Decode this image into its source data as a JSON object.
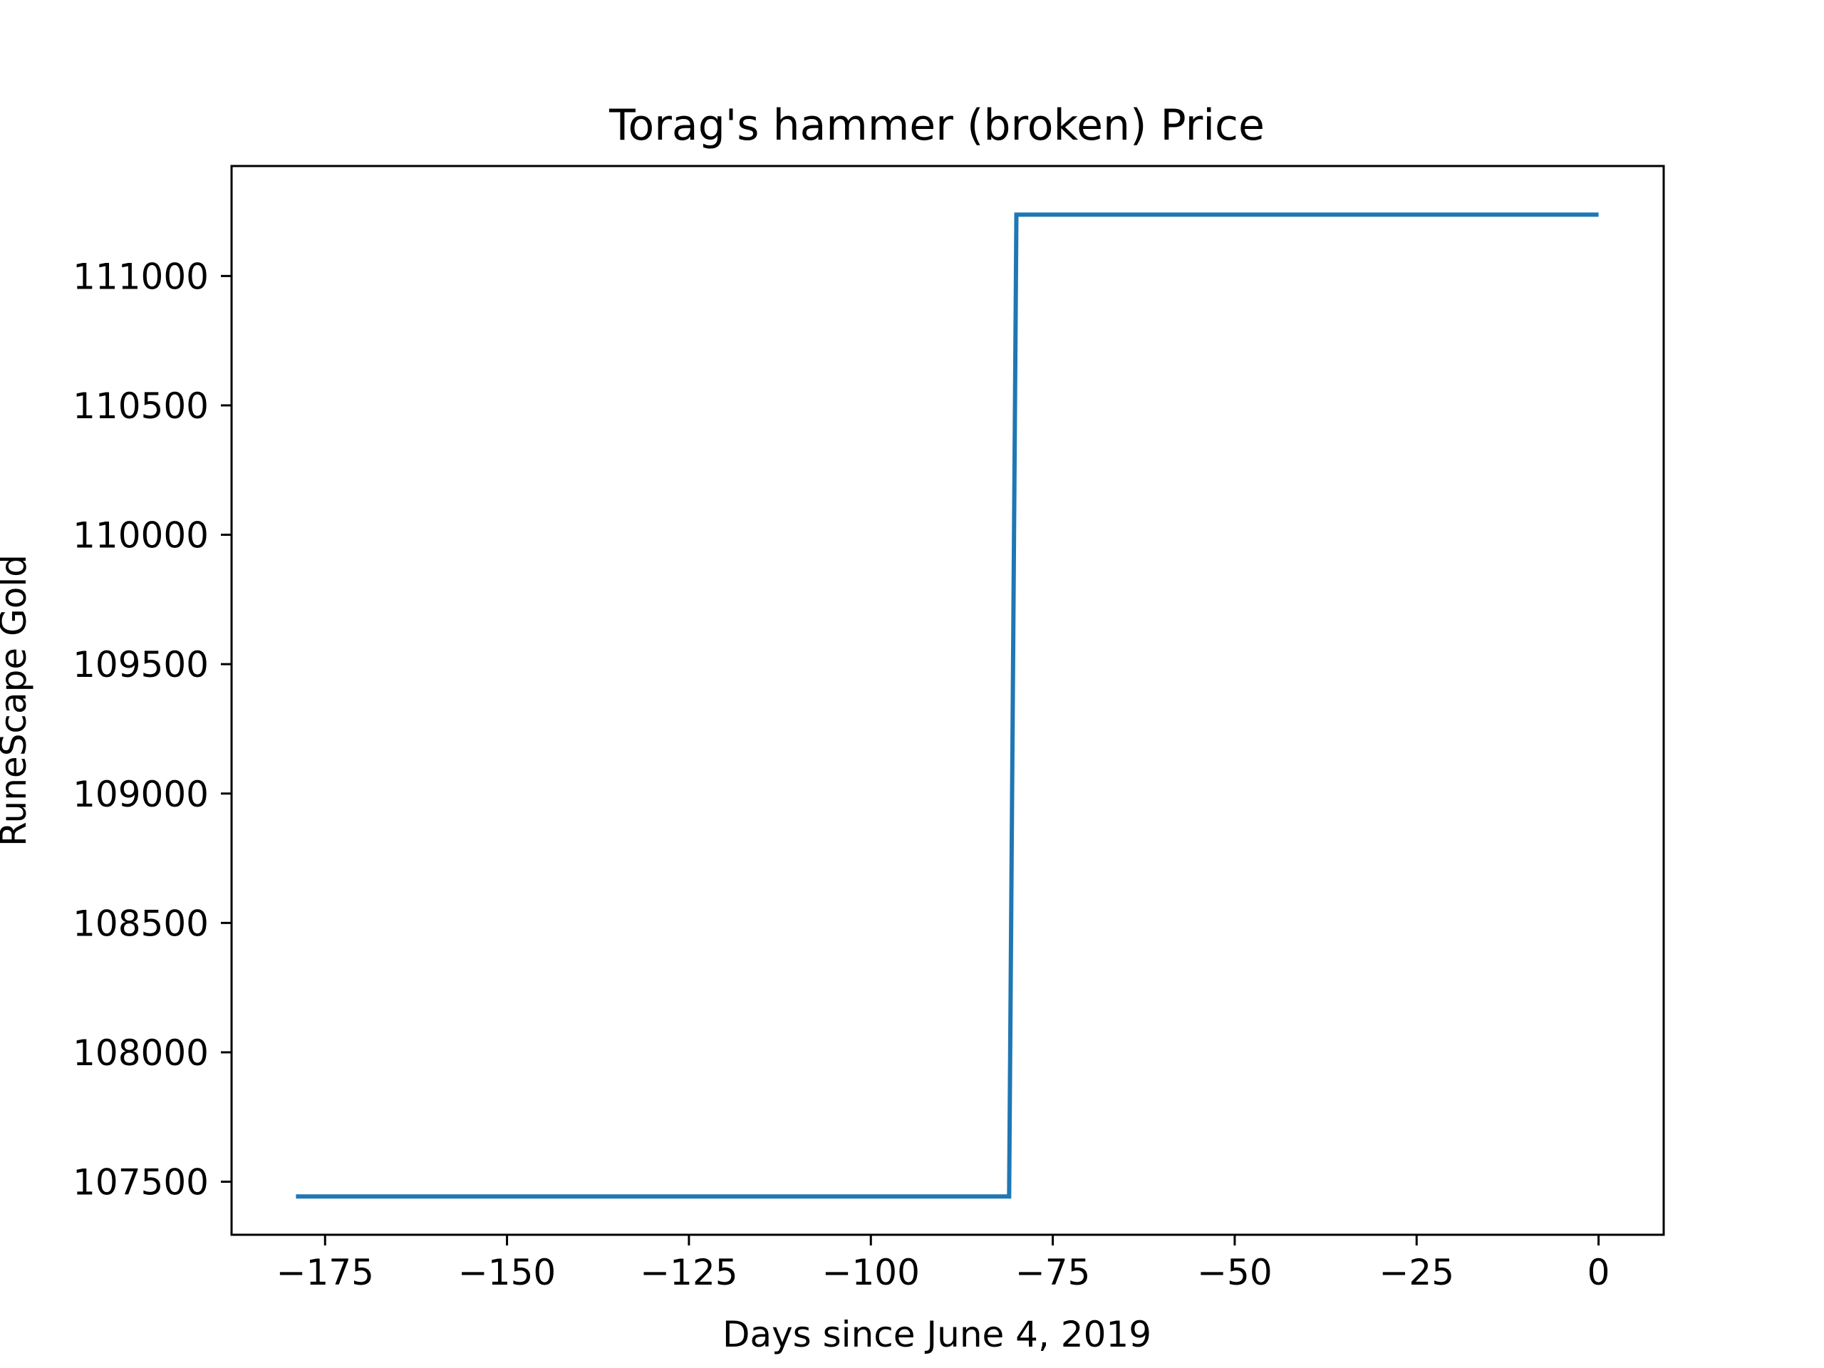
{
  "chart_data": {
    "type": "line",
    "title": "Torag's hammer (broken) Price",
    "xlabel": "Days since June 4, 2019",
    "ylabel": "RuneScape Gold",
    "xlim": [
      -187.85,
      8.95
    ],
    "ylim": [
      107295,
      111425
    ],
    "xticks": [
      -175,
      -150,
      -125,
      -100,
      -75,
      -50,
      -25,
      0
    ],
    "xtick_labels": [
      "−175",
      "−150",
      "−125",
      "−100",
      "−75",
      "−50",
      "−25",
      "0"
    ],
    "yticks": [
      107500,
      108000,
      108500,
      109000,
      109500,
      110000,
      110500,
      111000
    ],
    "ytick_labels": [
      "107500",
      "108000",
      "108500",
      "109000",
      "109500",
      "110000",
      "110500",
      "111000"
    ],
    "grid": false,
    "series": [
      {
        "color": "#1f77b4",
        "x": [
          -179,
          -81,
          -80,
          0
        ],
        "y": [
          107443,
          107443,
          111237,
          111237
        ]
      }
    ]
  }
}
